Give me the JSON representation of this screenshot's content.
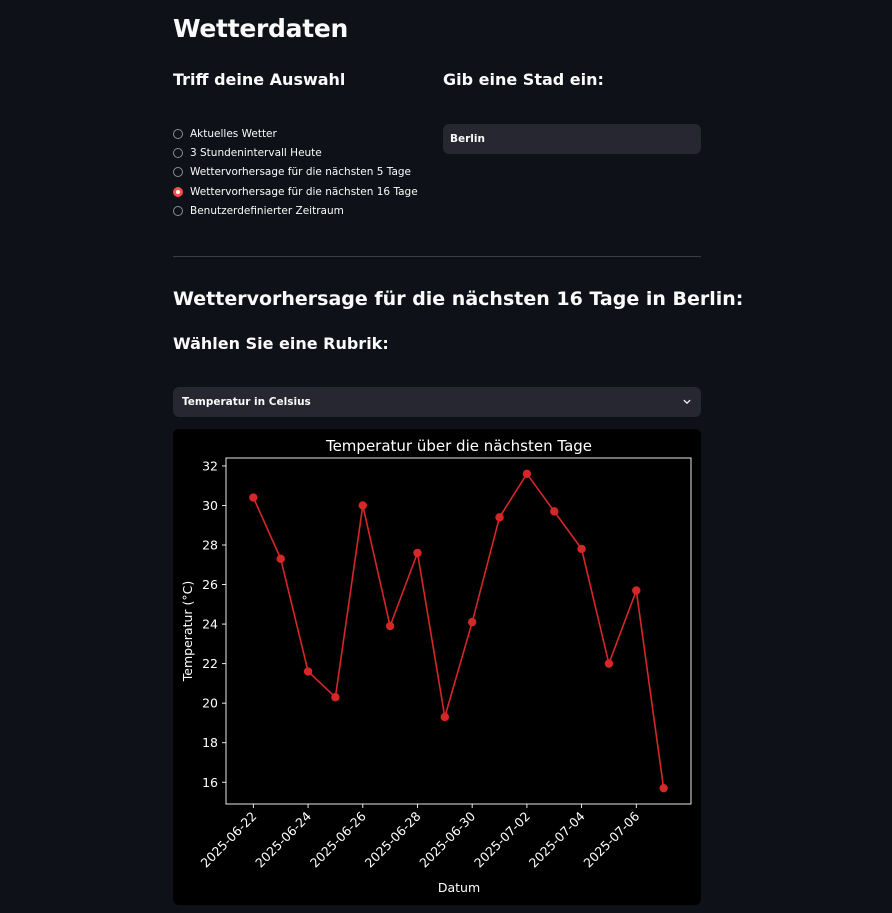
{
  "page": {
    "title": "Wetterdaten"
  },
  "selection": {
    "heading": "Triff deine Auswahl",
    "options": [
      {
        "label": "Aktuelles Wetter",
        "selected": false
      },
      {
        "label": "3 Stundenintervall Heute",
        "selected": false
      },
      {
        "label": "Wettervorhersage für die nächsten 5 Tage",
        "selected": false
      },
      {
        "label": "Wettervorhersage für die nächsten 16 Tage",
        "selected": true
      },
      {
        "label": "Benutzerdefinierter Zeitraum",
        "selected": false
      }
    ]
  },
  "city": {
    "heading": "Gib eine Stad ein:",
    "value": "Berlin"
  },
  "forecast": {
    "heading": "Wettervorhersage für die nächsten 16 Tage in Berlin:",
    "rubric_heading": "Wählen Sie eine Rubrik:",
    "rubric_selected": "Temperatur in Celsius"
  },
  "colors": {
    "accent": "#ff4b4b",
    "line": "#d62728",
    "background": "#0e1117",
    "input_bg": "#262730"
  },
  "chart_data": {
    "type": "line",
    "title": "Temperatur über die nächsten Tage",
    "xlabel": "Datum",
    "ylabel": "Temperatur (°C)",
    "x": [
      "2025-06-22",
      "2025-06-23",
      "2025-06-24",
      "2025-06-25",
      "2025-06-26",
      "2025-06-27",
      "2025-06-28",
      "2025-06-29",
      "2025-06-30",
      "2025-07-01",
      "2025-07-02",
      "2025-07-03",
      "2025-07-04",
      "2025-07-05",
      "2025-07-06",
      "2025-07-07"
    ],
    "values": [
      30.4,
      27.3,
      21.6,
      20.3,
      30.0,
      23.9,
      27.6,
      19.3,
      24.1,
      29.4,
      31.6,
      29.7,
      27.8,
      22.0,
      25.7,
      15.7
    ],
    "x_ticks": [
      "2025-06-22",
      "2025-06-24",
      "2025-06-26",
      "2025-06-28",
      "2025-06-30",
      "2025-07-02",
      "2025-07-04",
      "2025-07-06"
    ],
    "y_ticks": [
      16,
      18,
      20,
      22,
      24,
      26,
      28,
      30,
      32
    ],
    "ylim": [
      14.9,
      32.4
    ],
    "xlim": [
      "2025-06-21",
      "2025-07-08"
    ],
    "grid": false,
    "legend": "none",
    "marker": "circle"
  }
}
